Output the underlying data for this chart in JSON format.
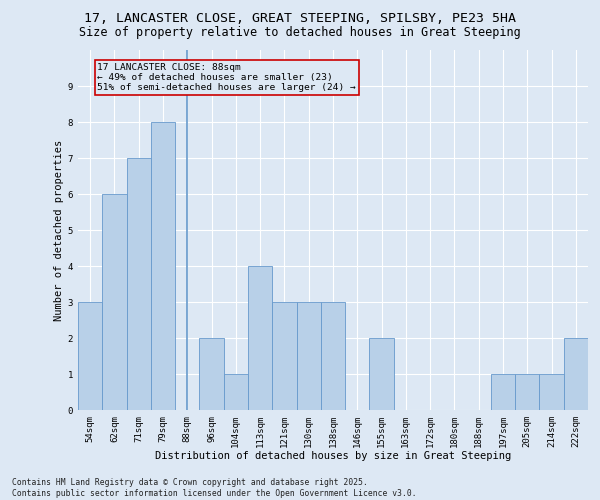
{
  "title_line1": "17, LANCASTER CLOSE, GREAT STEEPING, SPILSBY, PE23 5HA",
  "title_line2": "Size of property relative to detached houses in Great Steeping",
  "xlabel": "Distribution of detached houses by size in Great Steeping",
  "ylabel": "Number of detached properties",
  "footnote": "Contains HM Land Registry data © Crown copyright and database right 2025.\nContains public sector information licensed under the Open Government Licence v3.0.",
  "bin_labels": [
    "54sqm",
    "62sqm",
    "71sqm",
    "79sqm",
    "88sqm",
    "96sqm",
    "104sqm",
    "113sqm",
    "121sqm",
    "130sqm",
    "138sqm",
    "146sqm",
    "155sqm",
    "163sqm",
    "172sqm",
    "180sqm",
    "188sqm",
    "197sqm",
    "205sqm",
    "214sqm",
    "222sqm"
  ],
  "bar_heights": [
    3,
    6,
    7,
    8,
    0,
    2,
    1,
    4,
    3,
    3,
    3,
    0,
    2,
    0,
    0,
    0,
    0,
    1,
    1,
    1,
    2
  ],
  "bar_color": "#b8d0e8",
  "bar_edge_color": "#6699cc",
  "background_color": "#dde8f4",
  "grid_color": "#ffffff",
  "annotation_box_color": "#cc0000",
  "annotation_text": "17 LANCASTER CLOSE: 88sqm\n← 49% of detached houses are smaller (23)\n51% of semi-detached houses are larger (24) →",
  "marker_bin_index": 4,
  "ylim": [
    0,
    10
  ],
  "yticks": [
    0,
    1,
    2,
    3,
    4,
    5,
    6,
    7,
    8,
    9
  ],
  "title_fontsize": 9.5,
  "subtitle_fontsize": 8.5,
  "axis_label_fontsize": 7.5,
  "tick_fontsize": 6.5,
  "annotation_fontsize": 6.8,
  "footnote_fontsize": 5.8
}
